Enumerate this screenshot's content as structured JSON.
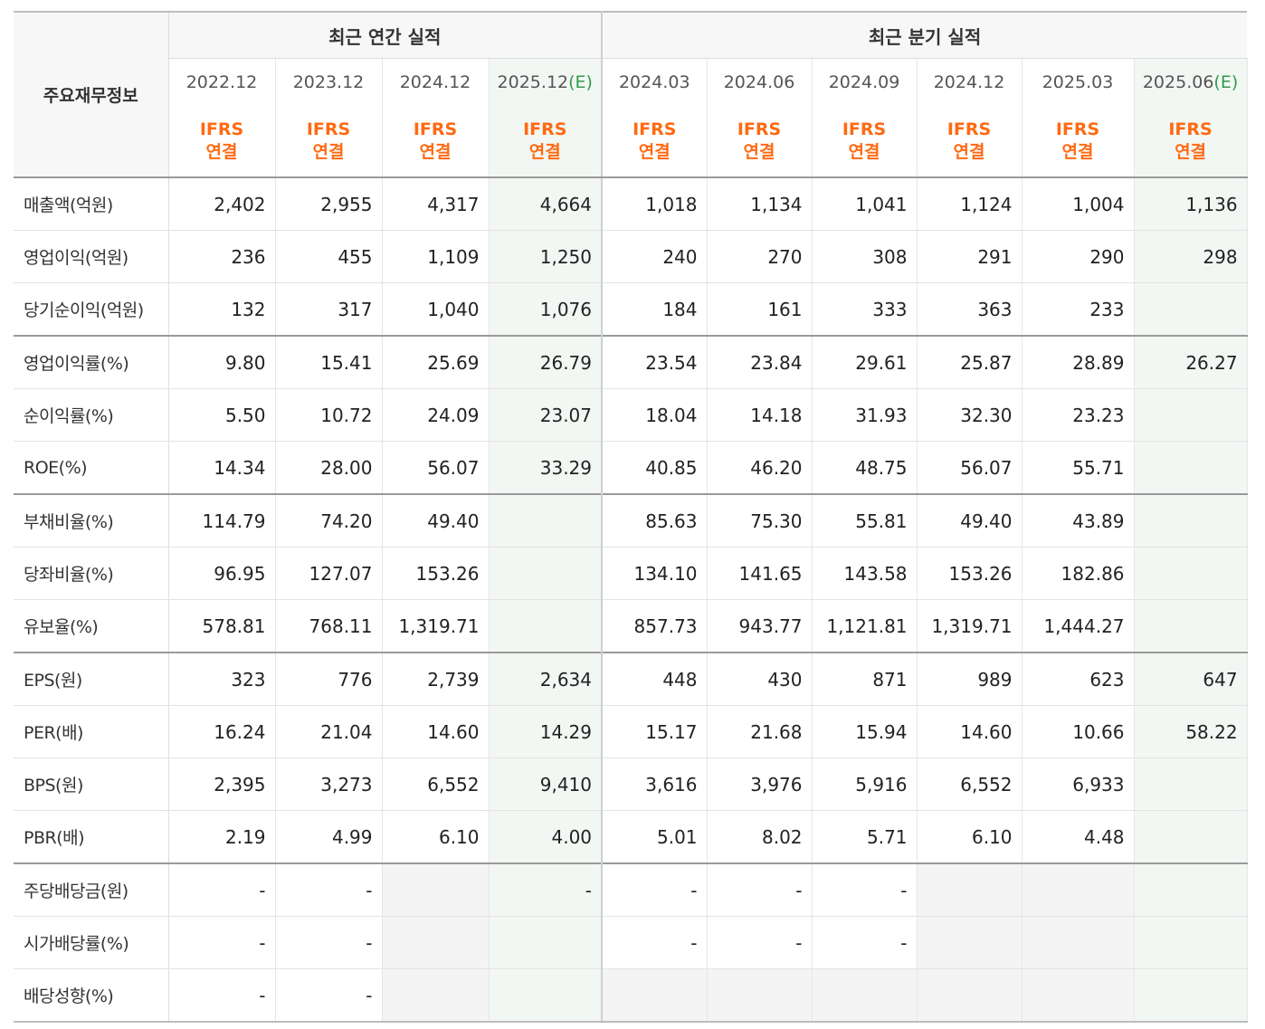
{
  "table": {
    "corner_label": "주요재무정보",
    "group_annual": "최근 연간 실적",
    "group_quarterly": "최근 분기 실적",
    "columns": [
      {
        "date": "2022.12",
        "est": "",
        "ifrs_line1": "IFRS",
        "ifrs_line2": "연결"
      },
      {
        "date": "2023.12",
        "est": "",
        "ifrs_line1": "IFRS",
        "ifrs_line2": "연결"
      },
      {
        "date": "2024.12",
        "est": "",
        "ifrs_line1": "IFRS",
        "ifrs_line2": "연결"
      },
      {
        "date": "2025.12",
        "est": "(E)",
        "ifrs_line1": "IFRS",
        "ifrs_line2": "연결"
      },
      {
        "date": "2024.03",
        "est": "",
        "ifrs_line1": "IFRS",
        "ifrs_line2": "연결"
      },
      {
        "date": "2024.06",
        "est": "",
        "ifrs_line1": "IFRS",
        "ifrs_line2": "연결"
      },
      {
        "date": "2024.09",
        "est": "",
        "ifrs_line1": "IFRS",
        "ifrs_line2": "연결"
      },
      {
        "date": "2024.12",
        "est": "",
        "ifrs_line1": "IFRS",
        "ifrs_line2": "연결"
      },
      {
        "date": "2025.03",
        "est": "",
        "ifrs_line1": "IFRS",
        "ifrs_line2": "연결"
      },
      {
        "date": "2025.06",
        "est": "(E)",
        "ifrs_line1": "IFRS",
        "ifrs_line2": "연결"
      }
    ],
    "rows": [
      {
        "label": "매출액(억원)",
        "values": [
          "2,402",
          "2,955",
          "4,317",
          "4,664",
          "1,018",
          "1,134",
          "1,041",
          "1,124",
          "1,004",
          "1,136"
        ]
      },
      {
        "label": "영업이익(억원)",
        "values": [
          "236",
          "455",
          "1,109",
          "1,250",
          "240",
          "270",
          "308",
          "291",
          "290",
          "298"
        ]
      },
      {
        "label": "당기순이익(억원)",
        "values": [
          "132",
          "317",
          "1,040",
          "1,076",
          "184",
          "161",
          "333",
          "363",
          "233",
          ""
        ]
      },
      {
        "label": "영업이익률(%)",
        "values": [
          "9.80",
          "15.41",
          "25.69",
          "26.79",
          "23.54",
          "23.84",
          "29.61",
          "25.87",
          "28.89",
          "26.27"
        ]
      },
      {
        "label": "순이익률(%)",
        "values": [
          "5.50",
          "10.72",
          "24.09",
          "23.07",
          "18.04",
          "14.18",
          "31.93",
          "32.30",
          "23.23",
          ""
        ]
      },
      {
        "label": "ROE(%)",
        "values": [
          "14.34",
          "28.00",
          "56.07",
          "33.29",
          "40.85",
          "46.20",
          "48.75",
          "56.07",
          "55.71",
          ""
        ]
      },
      {
        "label": "부채비율(%)",
        "values": [
          "114.79",
          "74.20",
          "49.40",
          "",
          "85.63",
          "75.30",
          "55.81",
          "49.40",
          "43.89",
          ""
        ]
      },
      {
        "label": "당좌비율(%)",
        "values": [
          "96.95",
          "127.07",
          "153.26",
          "",
          "134.10",
          "141.65",
          "143.58",
          "153.26",
          "182.86",
          ""
        ]
      },
      {
        "label": "유보율(%)",
        "values": [
          "578.81",
          "768.11",
          "1,319.71",
          "",
          "857.73",
          "943.77",
          "1,121.81",
          "1,319.71",
          "1,444.27",
          ""
        ]
      },
      {
        "label": "EPS(원)",
        "values": [
          "323",
          "776",
          "2,739",
          "2,634",
          "448",
          "430",
          "871",
          "989",
          "623",
          "647"
        ]
      },
      {
        "label": "PER(배)",
        "values": [
          "16.24",
          "21.04",
          "14.60",
          "14.29",
          "15.17",
          "21.68",
          "15.94",
          "14.60",
          "10.66",
          "58.22"
        ]
      },
      {
        "label": "BPS(원)",
        "values": [
          "2,395",
          "3,273",
          "6,552",
          "9,410",
          "3,616",
          "3,976",
          "5,916",
          "6,552",
          "6,933",
          ""
        ]
      },
      {
        "label": "PBR(배)",
        "values": [
          "2.19",
          "4.99",
          "6.10",
          "4.00",
          "5.01",
          "8.02",
          "5.71",
          "6.10",
          "4.48",
          ""
        ]
      },
      {
        "label": "주당배당금(원)",
        "values": [
          "-",
          "-",
          "",
          "-",
          "-",
          "-",
          "-",
          "",
          "",
          ""
        ]
      },
      {
        "label": "시가배당률(%)",
        "values": [
          "-",
          "-",
          "",
          "",
          "-",
          "-",
          "-",
          "",
          "",
          ""
        ]
      },
      {
        "label": "배당성향(%)",
        "values": [
          "-",
          "-",
          "",
          "",
          "",
          "",
          "",
          "",
          "",
          ""
        ]
      }
    ]
  }
}
